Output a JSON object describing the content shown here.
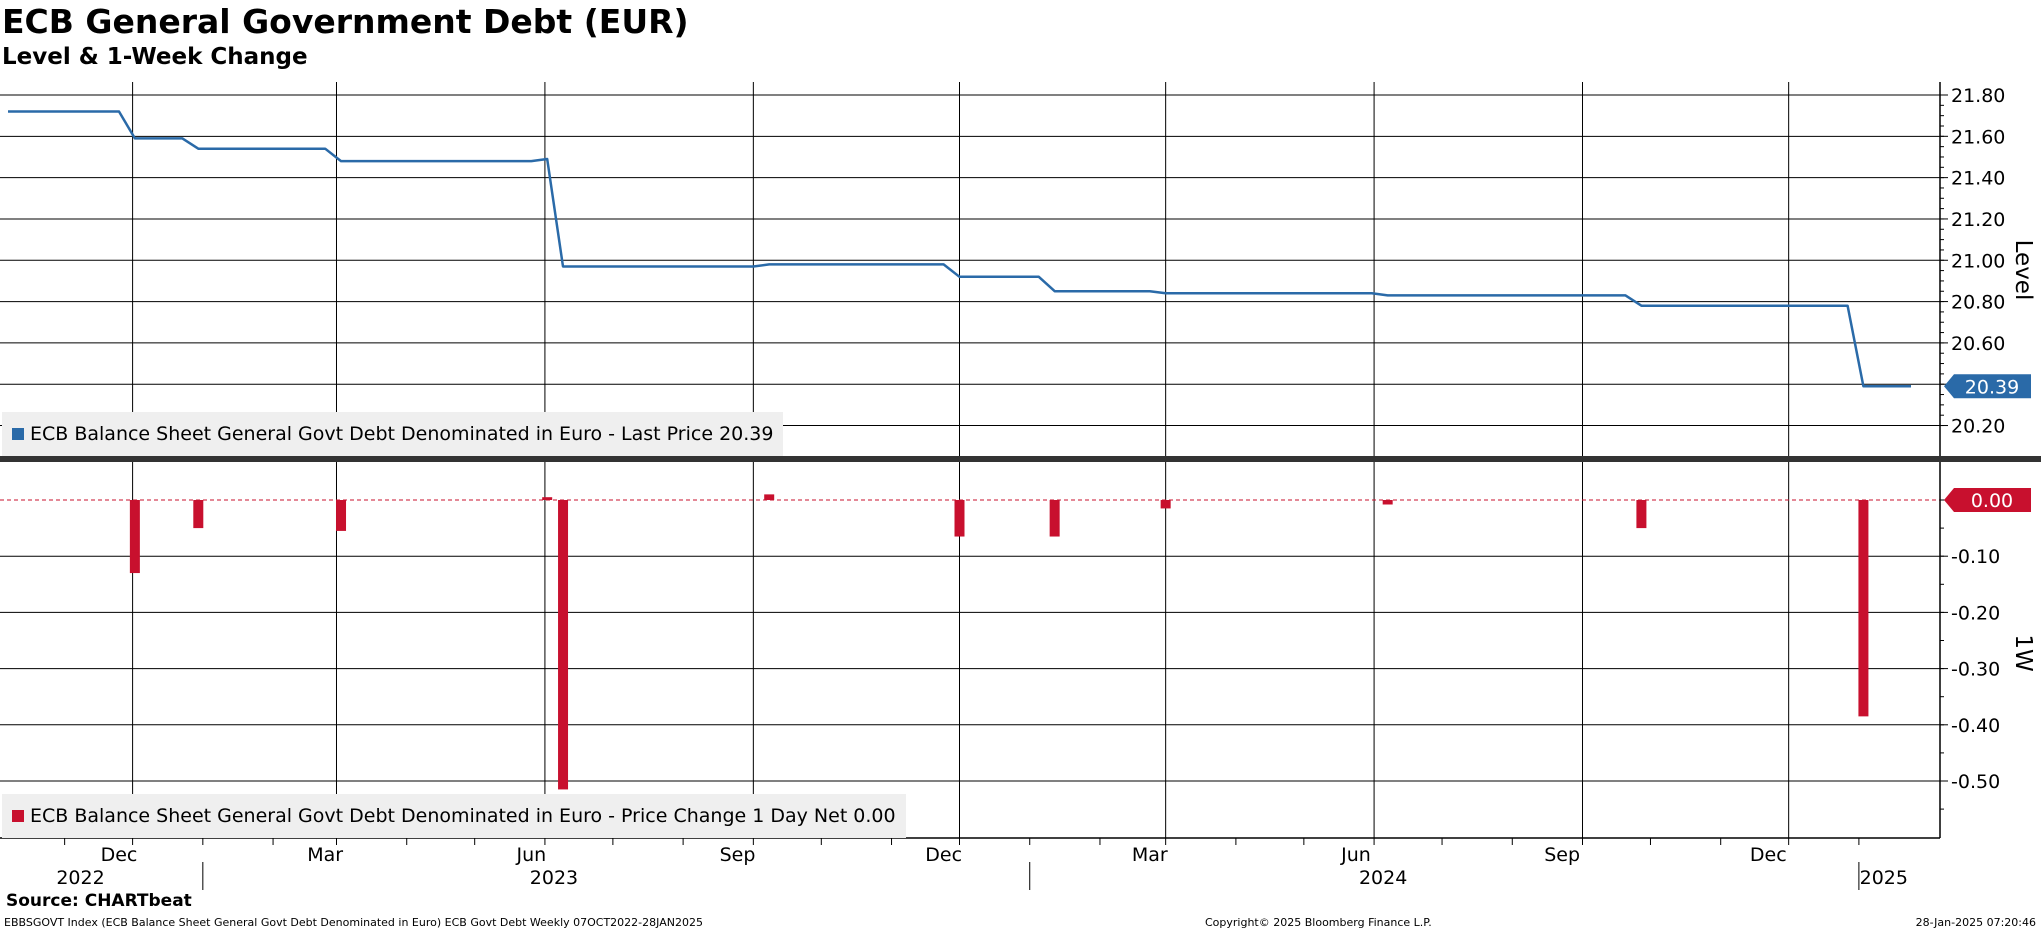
{
  "title": "ECB General Government Debt (EUR)",
  "subtitle": "Level & 1-Week Change",
  "colors": {
    "level_line": "#2a6aa8",
    "change_bar": "#c8102e",
    "last_price_badge": "#2a6aa8",
    "change_badge": "#c8102e",
    "legend_bg": "#efefef"
  },
  "legend": {
    "top": "ECB Balance Sheet General Govt Debt Denominated in Euro - Last Price 20.39",
    "bottom": "ECB Balance Sheet General Govt Debt Denominated in Euro - Price Change 1 Day Net 0.00"
  },
  "source": "Source: CHARTbeat",
  "footer": {
    "description": "EBBSGOVT Index (ECB Balance Sheet General Govt Debt Denominated in Euro) ECB Govt Debt  Weekly 07OCT2022-28JAN2025",
    "copyright": "Copyright© 2025 Bloomberg Finance L.P.",
    "timestamp": "28-Jan-2025 07:20:46"
  },
  "chart_data": [
    {
      "type": "line",
      "panel": "top",
      "ylabel": "Level",
      "ylim": [
        20.15,
        21.85
      ],
      "yticks": [
        "21.80",
        "21.60",
        "21.40",
        "21.20",
        "21.00",
        "20.80",
        "20.60",
        "20.40",
        "20.20"
      ],
      "last_value_label": "20.39",
      "grid": true,
      "x_axis": {
        "months": [
          "Dec",
          "Mar",
          "Jun",
          "Sep",
          "Dec",
          "Mar",
          "Jun",
          "Sep",
          "Dec"
        ],
        "years": [
          "2022",
          "2023",
          "2024",
          "2025"
        ]
      },
      "series": [
        {
          "name": "ECB Balance Sheet General Govt Debt Denominated in Euro",
          "x": [
            "2022-10-07",
            "2022-11-25",
            "2022-12-02",
            "2022-12-23",
            "2022-12-30",
            "2023-02-24",
            "2023-03-03",
            "2023-05-26",
            "2023-06-02",
            "2023-06-09",
            "2023-09-01",
            "2023-09-08",
            "2023-11-24",
            "2023-12-01",
            "2024-01-05",
            "2024-01-12",
            "2024-02-23",
            "2024-03-01",
            "2024-05-31",
            "2024-06-07",
            "2024-09-20",
            "2024-09-27",
            "2024-12-27",
            "2025-01-03",
            "2025-01-24"
          ],
          "values": [
            21.72,
            21.72,
            21.59,
            21.59,
            21.54,
            21.54,
            21.48,
            21.48,
            21.49,
            20.97,
            20.97,
            20.98,
            20.98,
            20.92,
            20.92,
            20.85,
            20.85,
            20.84,
            20.84,
            20.83,
            20.83,
            20.78,
            20.78,
            20.39,
            20.39
          ]
        }
      ]
    },
    {
      "type": "bar",
      "panel": "bottom",
      "ylabel": "1W",
      "ylim": [
        -0.6,
        0.02
      ],
      "yticks": [
        "0.00",
        "-0.10",
        "-0.20",
        "-0.30",
        "-0.40",
        "-0.50"
      ],
      "last_value_label": "0.00",
      "grid": true,
      "series": [
        {
          "name": "ECB Balance Sheet General Govt Debt Denominated in Euro - Price Change 1 Day Net",
          "x": [
            "2022-12-02",
            "2022-12-30",
            "2023-03-03",
            "2023-06-02",
            "2023-06-09",
            "2023-09-08",
            "2023-12-01",
            "2024-01-12",
            "2024-03-01",
            "2024-06-07",
            "2024-09-27",
            "2025-01-03"
          ],
          "values": [
            -0.13,
            -0.05,
            -0.055,
            0.005,
            -0.515,
            0.01,
            -0.065,
            -0.065,
            -0.015,
            -0.008,
            -0.05,
            -0.385
          ]
        }
      ]
    }
  ]
}
